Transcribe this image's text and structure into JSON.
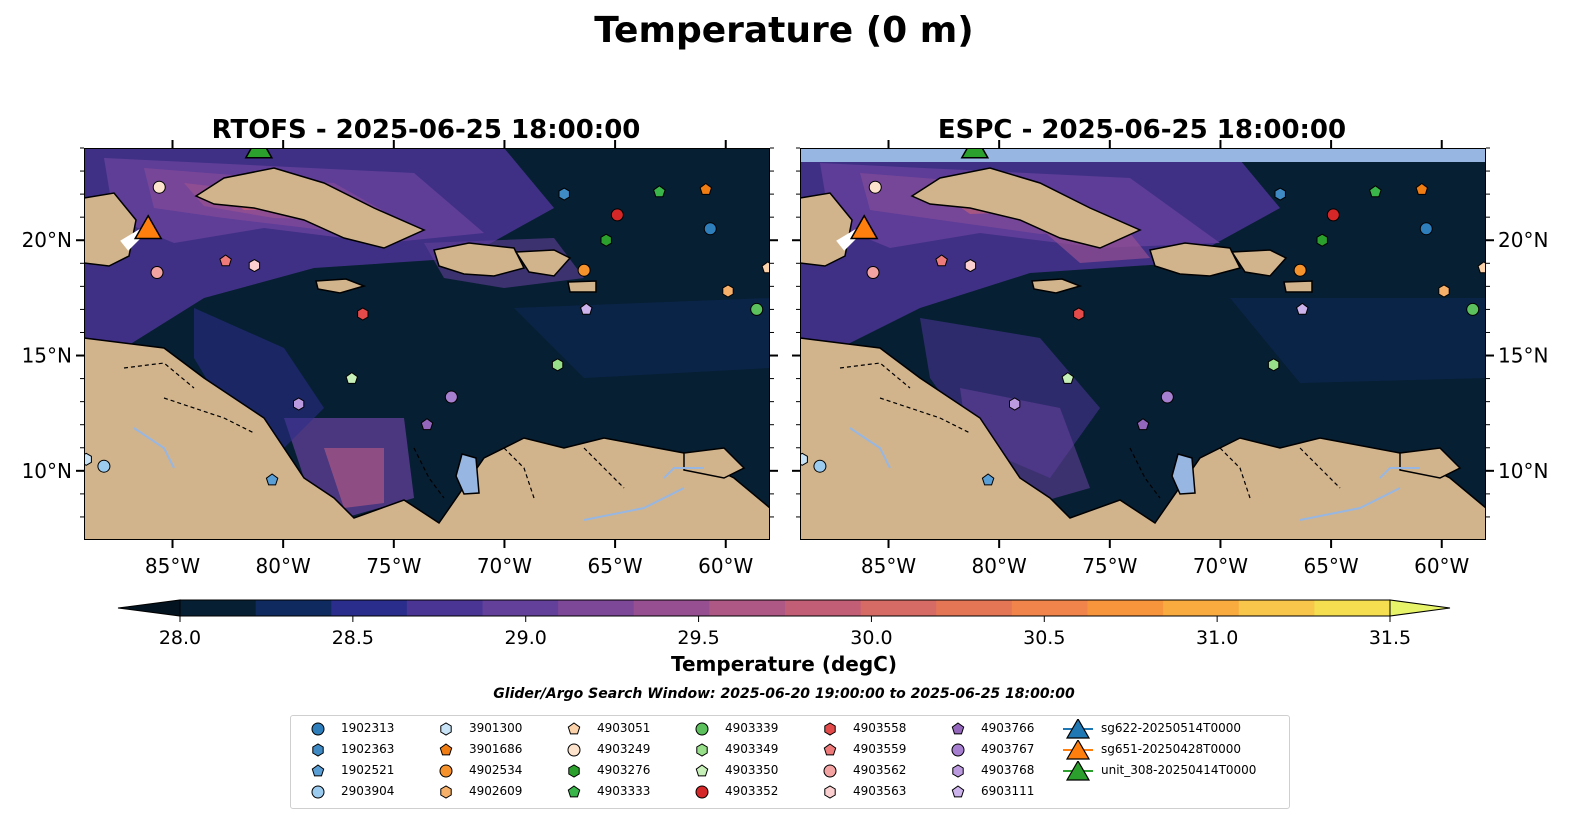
{
  "figure": {
    "title": "Temperature (0 m)",
    "search_window": "Glider/Argo Search Window: 2025-06-20 19:00:00 to 2025-06-25 18:00:00"
  },
  "panels": [
    {
      "title": "RTOFS - 2025-06-25 18:00:00",
      "model": "RTOFS"
    },
    {
      "title": "ESPC - 2025-06-25 18:00:00",
      "model": "ESPC"
    }
  ],
  "map": {
    "lon_range": [
      -89,
      -58
    ],
    "lat_range": [
      7,
      24
    ],
    "lon_ticks": [
      {
        "value": -85,
        "label": "85°W"
      },
      {
        "value": -80,
        "label": "80°W"
      },
      {
        "value": -75,
        "label": "75°W"
      },
      {
        "value": -70,
        "label": "70°W"
      },
      {
        "value": -65,
        "label": "65°W"
      },
      {
        "value": -60,
        "label": "60°W"
      }
    ],
    "lat_ticks": [
      {
        "value": 10,
        "label": "10°N"
      },
      {
        "value": 15,
        "label": "15°N"
      },
      {
        "value": 20,
        "label": "20°N"
      }
    ],
    "ocean_color": "#071f33",
    "land_color": "#d2b48c",
    "lake_color": "#97b6e1",
    "river_color": "#97b6e1"
  },
  "colorbar": {
    "label": "Temperature (degC)",
    "min": 28.0,
    "max": 31.5,
    "ticks": [
      {
        "value": 28.0,
        "label": "28.0"
      },
      {
        "value": 28.5,
        "label": "28.5"
      },
      {
        "value": 29.0,
        "label": "29.0"
      },
      {
        "value": 29.5,
        "label": "29.5"
      },
      {
        "value": 30.0,
        "label": "30.0"
      },
      {
        "value": 30.5,
        "label": "30.5"
      },
      {
        "value": 31.0,
        "label": "31.0"
      },
      {
        "value": 31.5,
        "label": "31.5"
      }
    ],
    "colors": [
      "#071f33",
      "#0e2a5e",
      "#2a2d8c",
      "#4a3494",
      "#63409a",
      "#7d4898",
      "#965091",
      "#ad5885",
      "#c25f77",
      "#d66a65",
      "#e47656",
      "#f0844a",
      "#f7953c",
      "#f9ab40",
      "#f7c64a",
      "#f5de50"
    ],
    "under_color": "#03131f",
    "over_color": "#e7f46a"
  },
  "floats": [
    {
      "id": "1902313",
      "marker": "circle",
      "color": "#2f7ebc",
      "lon": -60.7,
      "lat": 20.5
    },
    {
      "id": "1902363",
      "marker": "hexagon",
      "color": "#3f8ac4",
      "lon": -67.3,
      "lat": 22.0
    },
    {
      "id": "1902521",
      "marker": "pentagon",
      "color": "#5a9ed6",
      "lon": -80.5,
      "lat": 9.6
    },
    {
      "id": "2903904",
      "marker": "circle",
      "color": "#9ccbf0",
      "lon": -88.1,
      "lat": 10.2
    },
    {
      "id": "3901300",
      "marker": "hexagon",
      "color": "#c8e2f6",
      "lon": -88.9,
      "lat": 10.5
    },
    {
      "id": "3901686",
      "marker": "pentagon",
      "color": "#f07d14",
      "lon": -60.9,
      "lat": 22.2
    },
    {
      "id": "4902534",
      "marker": "circle",
      "color": "#f5922b",
      "lon": -66.4,
      "lat": 18.7
    },
    {
      "id": "4902609",
      "marker": "hexagon",
      "color": "#f7b06a",
      "lon": -59.9,
      "lat": 17.8
    },
    {
      "id": "4903051",
      "marker": "pentagon",
      "color": "#fbd2aa",
      "lon": -58.1,
      "lat": 18.8
    },
    {
      "id": "4903249",
      "marker": "circle",
      "color": "#fde3cc",
      "lon": -85.6,
      "lat": 22.3
    },
    {
      "id": "4903276",
      "marker": "hexagon",
      "color": "#2ca02c",
      "lon": -65.4,
      "lat": 20.0
    },
    {
      "id": "4903333",
      "marker": "pentagon",
      "color": "#39b54a",
      "lon": -63.0,
      "lat": 22.1
    },
    {
      "id": "4903339",
      "marker": "circle",
      "color": "#5cc05c",
      "lon": -58.6,
      "lat": 17.0
    },
    {
      "id": "4903349",
      "marker": "hexagon",
      "color": "#98df8a",
      "lon": -67.6,
      "lat": 14.6
    },
    {
      "id": "4903350",
      "marker": "pentagon",
      "color": "#c7f0b8",
      "lon": -76.9,
      "lat": 14.0
    },
    {
      "id": "4903352",
      "marker": "circle",
      "color": "#d62728",
      "lon": -64.9,
      "lat": 21.1
    },
    {
      "id": "4903558",
      "marker": "hexagon",
      "color": "#e34a4a",
      "lon": -76.4,
      "lat": 16.8
    },
    {
      "id": "4903559",
      "marker": "pentagon",
      "color": "#ee7a7a",
      "lon": -82.6,
      "lat": 19.1
    },
    {
      "id": "4903562",
      "marker": "circle",
      "color": "#f4a3a3",
      "lon": -85.7,
      "lat": 18.6
    },
    {
      "id": "4903563",
      "marker": "hexagon",
      "color": "#fbcfcf",
      "lon": -81.3,
      "lat": 18.9
    },
    {
      "id": "4903766",
      "marker": "pentagon",
      "color": "#9467bd",
      "lon": -73.5,
      "lat": 12.0
    },
    {
      "id": "4903767",
      "marker": "circle",
      "color": "#a77fd0",
      "lon": -72.4,
      "lat": 13.2
    },
    {
      "id": "4903768",
      "marker": "hexagon",
      "color": "#bb9ae0",
      "lon": -79.3,
      "lat": 12.9
    },
    {
      "id": "6903111",
      "marker": "pentagon",
      "color": "#cdb3ec",
      "lon": -66.3,
      "lat": 17.0
    }
  ],
  "gliders": [
    {
      "id": "sg622-20250514T0000",
      "marker": "triangle",
      "color": "#1f77b4",
      "lon": -86.1,
      "lat": 20.5,
      "visible_on_map": false
    },
    {
      "id": "sg651-20250428T0000",
      "marker": "triangle",
      "color": "#ff7f0e",
      "lon": -86.1,
      "lat": 20.5,
      "visible_on_map": true
    },
    {
      "id": "unit_308-20250414T0000",
      "marker": "triangle",
      "color": "#2ca02c",
      "lon": -81.1,
      "lat": 24.0,
      "visible_on_map": true
    }
  ],
  "legend_columns": [
    [
      "1902313",
      "1902363",
      "1902521",
      "2903904"
    ],
    [
      "3901300",
      "3901686",
      "4902534",
      "4902609"
    ],
    [
      "4903051",
      "4903249",
      "4903276",
      "4903333"
    ],
    [
      "4903339",
      "4903349",
      "4903350",
      "4903352"
    ],
    [
      "4903558",
      "4903559",
      "4903562",
      "4903563"
    ],
    [
      "4903766",
      "4903767",
      "4903768",
      "6903111"
    ],
    [
      "sg622-20250514T0000",
      "sg651-20250428T0000",
      "unit_308-20250414T0000"
    ]
  ]
}
